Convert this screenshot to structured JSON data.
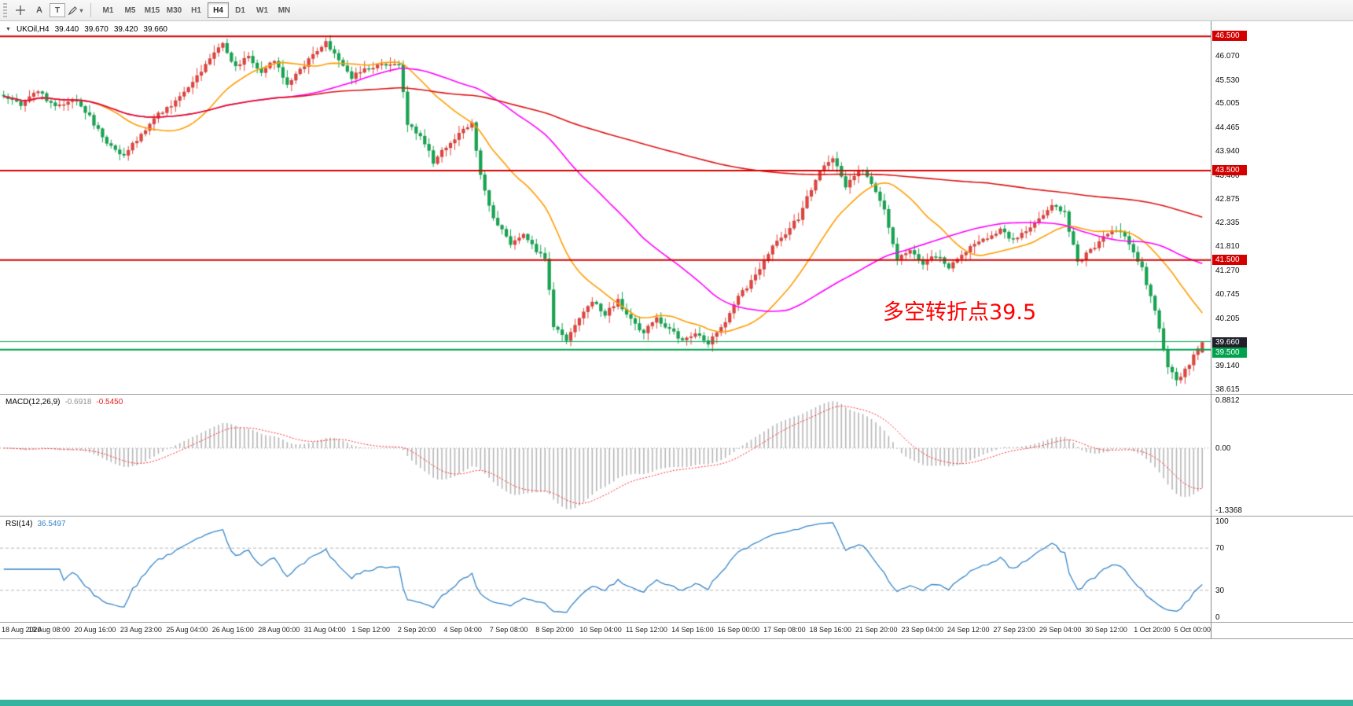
{
  "toolbar": {
    "arrow_tool_label": "A",
    "text_tool_label": "T",
    "timeframes": [
      "M1",
      "M5",
      "M15",
      "M30",
      "H1",
      "H4",
      "D1",
      "W1",
      "MN"
    ],
    "active_timeframe": "H4"
  },
  "chart_header": {
    "symbol": "UKOil,H4",
    "open": "39.440",
    "high": "39.670",
    "low": "39.420",
    "close": "39.660"
  },
  "annotation": {
    "text": "多空转折点39.5",
    "color": "#ff0000"
  },
  "price_axis": {
    "ticks": [
      "46.070",
      "45.530",
      "45.005",
      "44.465",
      "43.940",
      "43.400",
      "42.875",
      "42.335",
      "41.810",
      "41.270",
      "40.745",
      "40.205",
      "39.140",
      "38.615"
    ],
    "level_labels": [
      {
        "text": "46.500",
        "value": 46.5,
        "bg": "#d40000",
        "fg": "#ffffff"
      },
      {
        "text": "43.500",
        "value": 43.5,
        "bg": "#d40000",
        "fg": "#ffffff"
      },
      {
        "text": "41.500",
        "value": 41.5,
        "bg": "#d40000",
        "fg": "#ffffff"
      },
      {
        "text": "39.660",
        "value": 39.66,
        "bg": "#20202a",
        "fg": "#ffffff"
      },
      {
        "text": "39.500",
        "value": 39.5,
        "bg": "#00a24d",
        "fg": "#ffffff"
      }
    ]
  },
  "macd": {
    "label": "MACD(12,26,9)",
    "value_main": "-0.6918",
    "value_signal": "-0.5450",
    "axis": [
      "0.8812",
      "0.00",
      "-1.3368"
    ],
    "params": {
      "fast": 12,
      "slow": 26,
      "signal": 9
    },
    "histogram_color": "#b6b6b6",
    "signal_color": "#ff2a2a"
  },
  "rsi": {
    "label": "RSI(14)",
    "value": "36.5497",
    "period": 14,
    "axis": [
      "100",
      "70",
      "30",
      "0"
    ],
    "levels": [
      70,
      30
    ],
    "line_color": "#3585c8"
  },
  "time_axis": {
    "labels": [
      "18 Aug 2020",
      "19 Aug 08:00",
      "20 Aug 16:00",
      "23 Aug 23:00",
      "25 Aug 04:00",
      "26 Aug 16:00",
      "28 Aug 00:00",
      "31 Aug 04:00",
      "1 Sep 12:00",
      "2 Sep 20:00",
      "4 Sep 04:00",
      "7 Sep 08:00",
      "8 Sep 20:00",
      "10 Sep 04:00",
      "11 Sep 12:00",
      "14 Sep 16:00",
      "16 Sep 00:00",
      "17 Sep 08:00",
      "18 Sep 16:00",
      "21 Sep 20:00",
      "23 Sep 04:00",
      "24 Sep 12:00",
      "27 Sep 23:00",
      "29 Sep 04:00",
      "30 Sep 12:00",
      "1 Oct 20:00",
      "5 Oct 00:00"
    ]
  },
  "chart_data": {
    "type": "candlestick",
    "title": "UKOil H4",
    "symbol": "UKOil",
    "timeframe": "H4",
    "n_bars": 280,
    "ylim": [
      38.51,
      46.84
    ],
    "up_color": "#e8413b",
    "down_color": "#11a84f",
    "ohlc_display": {
      "open": 39.44,
      "high": 39.67,
      "low": 39.42,
      "close": 39.66
    },
    "close_anchors": [
      [
        0,
        45.15
      ],
      [
        4,
        44.95
      ],
      [
        8,
        45.3
      ],
      [
        12,
        44.9
      ],
      [
        16,
        45.1
      ],
      [
        20,
        44.7
      ],
      [
        24,
        44.1
      ],
      [
        28,
        43.85
      ],
      [
        32,
        44.3
      ],
      [
        36,
        44.75
      ],
      [
        40,
        45.05
      ],
      [
        44,
        45.45
      ],
      [
        48,
        46.05
      ],
      [
        51,
        46.35
      ],
      [
        54,
        45.8
      ],
      [
        57,
        46.05
      ],
      [
        60,
        45.7
      ],
      [
        63,
        45.95
      ],
      [
        66,
        45.45
      ],
      [
        69,
        45.75
      ],
      [
        72,
        46.1
      ],
      [
        75,
        46.4
      ],
      [
        78,
        45.95
      ],
      [
        81,
        45.6
      ],
      [
        84,
        45.75
      ],
      [
        88,
        45.85
      ],
      [
        92,
        45.9
      ],
      [
        94,
        44.55
      ],
      [
        97,
        44.3
      ],
      [
        100,
        43.7
      ],
      [
        103,
        44.05
      ],
      [
        106,
        44.3
      ],
      [
        109,
        44.55
      ],
      [
        111,
        43.4
      ],
      [
        114,
        42.45
      ],
      [
        118,
        41.85
      ],
      [
        121,
        42.05
      ],
      [
        124,
        41.7
      ],
      [
        126,
        41.55
      ],
      [
        128,
        40.05
      ],
      [
        131,
        39.7
      ],
      [
        134,
        40.2
      ],
      [
        137,
        40.6
      ],
      [
        140,
        40.3
      ],
      [
        143,
        40.6
      ],
      [
        146,
        40.15
      ],
      [
        149,
        39.9
      ],
      [
        152,
        40.2
      ],
      [
        155,
        39.95
      ],
      [
        158,
        39.7
      ],
      [
        161,
        39.85
      ],
      [
        164,
        39.65
      ],
      [
        167,
        39.95
      ],
      [
        170,
        40.55
      ],
      [
        173,
        40.9
      ],
      [
        176,
        41.3
      ],
      [
        179,
        41.8
      ],
      [
        182,
        42.1
      ],
      [
        185,
        42.45
      ],
      [
        188,
        43.1
      ],
      [
        191,
        43.65
      ],
      [
        193,
        43.8
      ],
      [
        196,
        43.15
      ],
      [
        199,
        43.55
      ],
      [
        202,
        43.25
      ],
      [
        205,
        42.6
      ],
      [
        208,
        41.55
      ],
      [
        211,
        41.7
      ],
      [
        214,
        41.45
      ],
      [
        217,
        41.6
      ],
      [
        220,
        41.35
      ],
      [
        223,
        41.65
      ],
      [
        226,
        41.85
      ],
      [
        229,
        42.0
      ],
      [
        232,
        42.2
      ],
      [
        235,
        41.95
      ],
      [
        238,
        42.15
      ],
      [
        241,
        42.4
      ],
      [
        244,
        42.75
      ],
      [
        247,
        42.55
      ],
      [
        250,
        41.45
      ],
      [
        253,
        41.7
      ],
      [
        256,
        42.0
      ],
      [
        259,
        42.2
      ],
      [
        262,
        41.9
      ],
      [
        265,
        41.3
      ],
      [
        268,
        40.35
      ],
      [
        271,
        39.15
      ],
      [
        273,
        38.8
      ],
      [
        275,
        39.05
      ],
      [
        277,
        39.35
      ],
      [
        279,
        39.66
      ]
    ],
    "moving_averages": [
      {
        "name": "ma-fast",
        "type": "sma",
        "period": 21,
        "color": "#ff9d00"
      },
      {
        "name": "ma-mid",
        "type": "sma",
        "period": 56,
        "color": "#ff00ff"
      },
      {
        "name": "ma-slow",
        "type": "sma",
        "period": 230,
        "color": "#dd1414"
      }
    ],
    "hlines": [
      {
        "price": 46.5,
        "color": "#d40000",
        "width": 2
      },
      {
        "price": 43.5,
        "color": "#d40000",
        "width": 2
      },
      {
        "price": 41.5,
        "color": "#d40000",
        "width": 2
      },
      {
        "price": 39.68,
        "color": "#00a24d",
        "width": 1
      },
      {
        "price": 39.5,
        "color": "#00a24d",
        "width": 2
      }
    ]
  }
}
